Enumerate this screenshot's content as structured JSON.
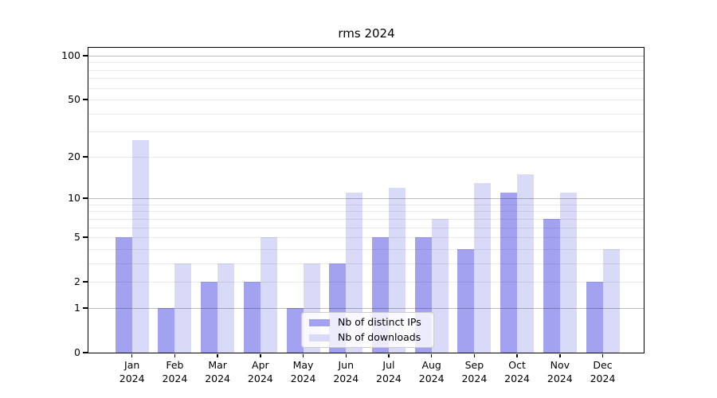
{
  "figure": {
    "title": "rms 2024"
  },
  "chart_data": {
    "type": "bar",
    "title": "rms 2024",
    "categories": [
      "Jan 2024",
      "Feb 2024",
      "Mar 2024",
      "Apr 2024",
      "May 2024",
      "Jun 2024",
      "Jul 2024",
      "Aug 2024",
      "Sep 2024",
      "Oct 2024",
      "Nov 2024",
      "Dec 2024"
    ],
    "series": [
      {
        "name": "Nb of distinct IPs",
        "color": "#a2a2f0",
        "values": [
          5,
          1,
          2,
          2,
          1,
          3,
          5,
          5,
          4,
          11,
          7,
          2
        ]
      },
      {
        "name": "Nb of downloads",
        "color": "#d9d9f8",
        "values": [
          26,
          3,
          3,
          5,
          3,
          11,
          12,
          7,
          13,
          15,
          11,
          4
        ]
      }
    ],
    "xlabel": "",
    "ylabel": "",
    "yscale": "log1p",
    "ylim": [
      0,
      113
    ],
    "yticks": [
      100,
      50,
      20,
      10,
      5,
      2,
      1,
      0
    ],
    "grid": {
      "major": [
        1,
        10,
        100
      ],
      "minor": [
        2,
        3,
        4,
        5,
        6,
        7,
        8,
        9,
        20,
        30,
        40,
        50,
        60,
        70,
        80,
        90
      ]
    },
    "legend": {
      "position": "lower-center"
    }
  }
}
